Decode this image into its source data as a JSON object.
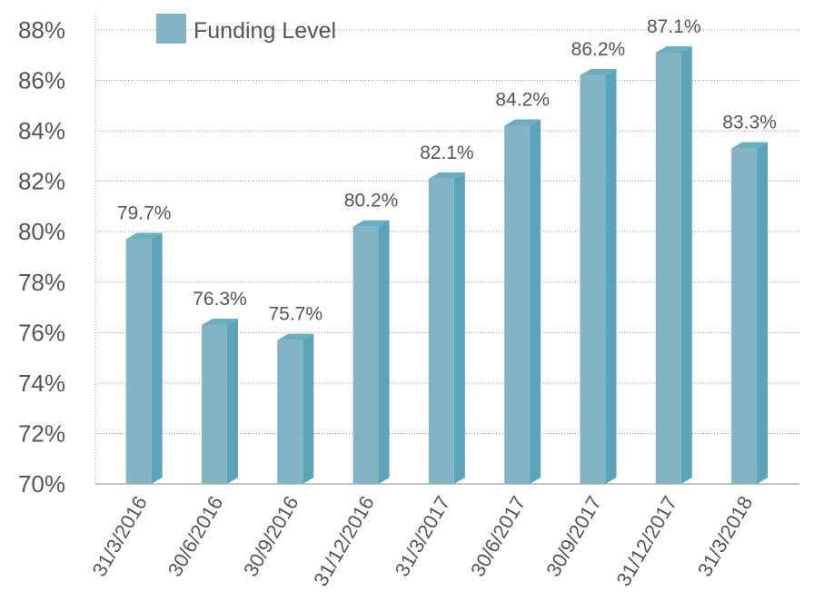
{
  "chart_data": {
    "type": "bar3d",
    "categories": [
      "31/3/2016",
      "30/6/2016",
      "30/9/2016",
      "31/12/2016",
      "31/3/2017",
      "30/6/2017",
      "30/9/2017",
      "31/12/2017",
      "31/3/2018"
    ],
    "series": [
      {
        "name": "Funding Level",
        "color": "#82b4c6",
        "values": [
          79.7,
          76.3,
          75.7,
          80.2,
          82.1,
          84.2,
          86.2,
          87.1,
          83.3
        ],
        "value_labels": [
          "79.7%",
          "76.3%",
          "75.7%",
          "80.2%",
          "82.1%",
          "84.2%",
          "86.2%",
          "87.1%",
          "83.3%"
        ]
      }
    ],
    "ylim": [
      70,
      88
    ],
    "yticks": [
      {
        "value": 70,
        "label": "70%"
      },
      {
        "value": 72,
        "label": "72%"
      },
      {
        "value": 74,
        "label": "74%"
      },
      {
        "value": 76,
        "label": "76%"
      },
      {
        "value": 78,
        "label": "78%"
      },
      {
        "value": 80,
        "label": "80%"
      },
      {
        "value": 82,
        "label": "82%"
      },
      {
        "value": 84,
        "label": "84%"
      },
      {
        "value": 86,
        "label": "86%"
      },
      {
        "value": 88,
        "label": "88%"
      }
    ],
    "grid": true,
    "legend": "upper left"
  }
}
